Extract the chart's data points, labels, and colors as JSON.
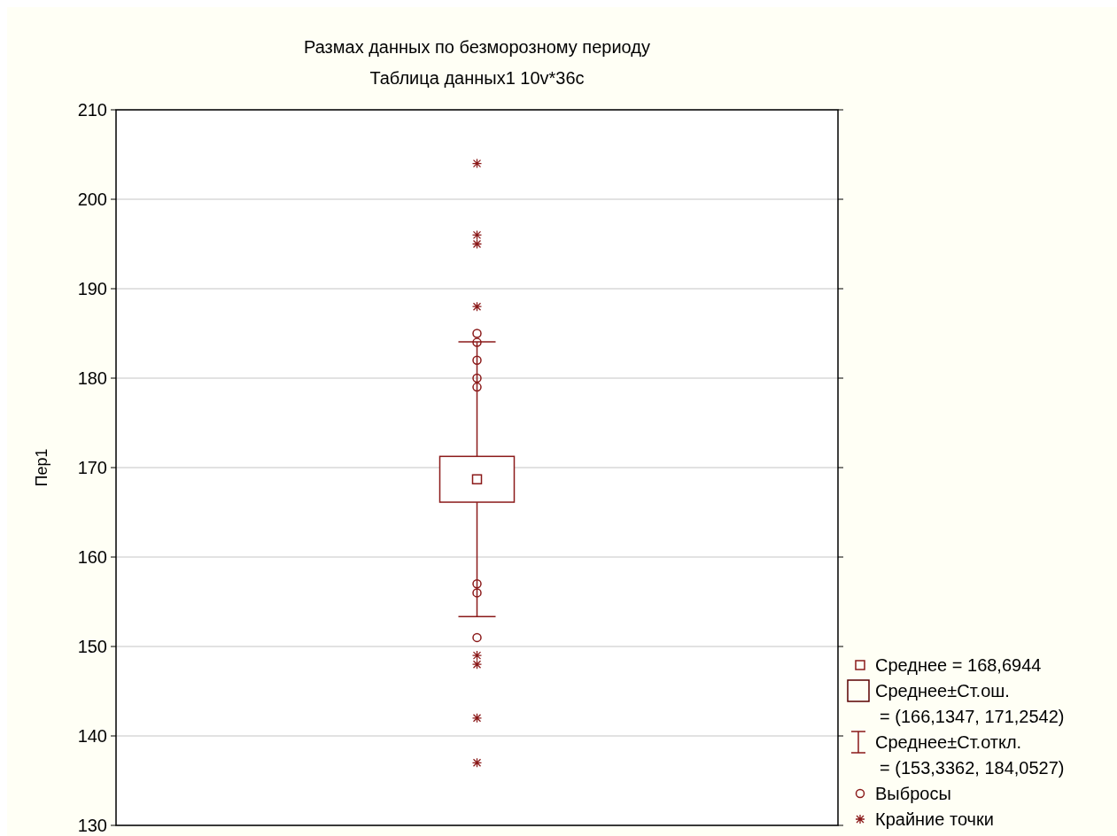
{
  "chart_data": {
    "type": "box",
    "title": "Размах данных по безморозному периоду",
    "subtitle": "Таблица данных1 10v*36c",
    "ylabel": "Пер1",
    "categories": [
      null
    ],
    "ylim": [
      130,
      210
    ],
    "yticks": [
      130,
      140,
      150,
      160,
      170,
      180,
      190,
      200,
      210
    ],
    "grid": "y",
    "legend": "bottom right",
    "tick_labels": "y",
    "annotations": [
      "Среднее = 168,6944",
      "Среднее±Ст.ош.\n= (166,1347, 171,2542)",
      "Среднее±Ст.откл.\n= (153,3362, 184,0527)"
    ],
    "series": [
      {
        "type": "box",
        "color": "#8b1a1a",
        "boxes": [
          {
            "low": 153.3362,
            "q1": 166.1347,
            "median": 168.6944,
            "q3": 171.2542,
            "high": 184.0527
          }
        ]
      },
      {
        "type": "scatter",
        "name": "Выбросы",
        "color": "#8b1a1a",
        "marker": "circle",
        "x": [
          null,
          null,
          null,
          null,
          null,
          null,
          null,
          null
        ],
        "values": [
          185,
          184,
          182,
          180,
          179,
          157,
          156,
          151
        ]
      },
      {
        "type": "scatter",
        "name": "Крайние точки",
        "color": "#8b1a1a",
        "marker": "cross",
        "x": [
          null,
          null,
          null,
          null,
          null,
          null,
          null,
          null
        ],
        "values": [
          204,
          196,
          195,
          188,
          149,
          148,
          142,
          137
        ]
      }
    ]
  }
}
